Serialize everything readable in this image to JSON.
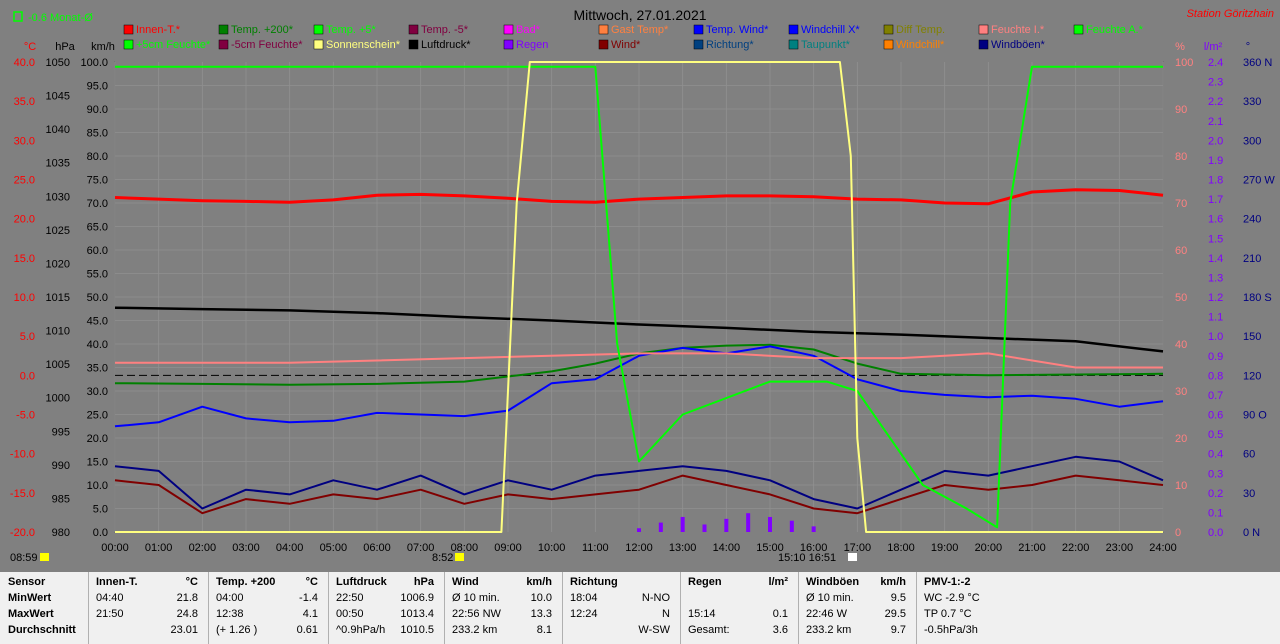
{
  "header": {
    "title": "Mittwoch, 27.01.2021",
    "station": "Station Göritzhain",
    "month_avg": "-0.6 Monat-Ø",
    "time_left": "08:59",
    "sunrise_marker": "8:52",
    "sunset_marker": "15:10  16:51"
  },
  "legend": [
    {
      "label": "Innen-T.*",
      "color": "#ff0000"
    },
    {
      "label": "Temp. +200*",
      "color": "#008000"
    },
    {
      "label": "Temp. +5*",
      "color": "#00ff00"
    },
    {
      "label": "Temp. -5*",
      "color": "#800040"
    },
    {
      "label": "Bad*",
      "color": "#ff00ff"
    },
    {
      "label": "Gast Temp*",
      "color": "#ff8040"
    },
    {
      "label": "Temp. Wind*",
      "color": "#0000ff"
    },
    {
      "label": "Windchill X*",
      "color": "#0000ff"
    },
    {
      "label": "Diff Temp.",
      "color": "#808000"
    },
    {
      "label": "Feuchte I.*",
      "color": "#ff8080"
    },
    {
      "label": "Feuchte A.*",
      "color": "#00ff00"
    },
    {
      "label": "+5cm Feuchte*",
      "color": "#00ff00"
    },
    {
      "label": "-5cm Feuchte*",
      "color": "#800040"
    },
    {
      "label": "Sonnenschein*",
      "color": "#ffff80"
    },
    {
      "label": "Luftdruck*",
      "color": "#000000"
    },
    {
      "label": "Regen",
      "color": "#8000ff"
    },
    {
      "label": "Wind*",
      "color": "#800000"
    },
    {
      "label": "Richtung*",
      "color": "#004080"
    },
    {
      "label": "Taupunkt*",
      "color": "#008080"
    },
    {
      "label": "Windchill*",
      "color": "#ff8000"
    },
    {
      "label": "Windböen*",
      "color": "#000080"
    }
  ],
  "chart_data": {
    "type": "line",
    "x_ticks": [
      "00:00",
      "01:00",
      "02:00",
      "03:00",
      "04:00",
      "05:00",
      "06:00",
      "07:00",
      "08:00",
      "09:00",
      "10:00",
      "11:00",
      "12:00",
      "13:00",
      "14:00",
      "15:00",
      "16:00",
      "17:00",
      "18:00",
      "19:00",
      "20:00",
      "21:00",
      "22:00",
      "23:00",
      "24:00"
    ],
    "axes": {
      "temp": {
        "label": "°C",
        "ticks": [
          "40.0",
          "35.0",
          "30.0",
          "25.0",
          "20.0",
          "15.0",
          "10.0",
          "5.0",
          "0.0",
          "-5.0",
          "-10.0",
          "-15.0",
          "-20.0"
        ],
        "range": [
          -20,
          40
        ]
      },
      "pressure": {
        "label": "hPa",
        "ticks": [
          "1050",
          "1045",
          "1040",
          "1035",
          "1030",
          "1025",
          "1020",
          "1015",
          "1010",
          "1005",
          "1000",
          "995",
          "990",
          "985",
          "980"
        ],
        "range": [
          980,
          1050
        ]
      },
      "wind": {
        "label": "km/h",
        "ticks": [
          "100.0",
          "95.0",
          "90.0",
          "85.0",
          "80.0",
          "75.0",
          "70.0",
          "65.0",
          "60.0",
          "55.0",
          "50.0",
          "45.0",
          "40.0",
          "35.0",
          "30.0",
          "25.0",
          "20.0",
          "15.0",
          "10.0",
          "5.0",
          "0.0"
        ],
        "range": [
          0,
          100
        ]
      },
      "humidity": {
        "label": "%",
        "ticks": [
          "100",
          "90",
          "80",
          "70",
          "60",
          "50",
          "40",
          "30",
          "20",
          "10",
          "0"
        ],
        "range": [
          0,
          100
        ]
      },
      "rain": {
        "label": "l/m²",
        "ticks": [
          "2.4",
          "2.3",
          "2.2",
          "2.1",
          "2.0",
          "1.9",
          "1.8",
          "1.7",
          "1.6",
          "1.5",
          "1.4",
          "1.3",
          "1.2",
          "1.1",
          "1.0",
          "0.9",
          "0.8",
          "0.7",
          "0.6",
          "0.5",
          "0.4",
          "0.3",
          "0.2",
          "0.1",
          "0.0"
        ],
        "range": [
          0,
          2.5
        ]
      },
      "direction": {
        "label": "°",
        "ticks": [
          "360 N",
          "330",
          "300",
          "270 W",
          "240",
          "210",
          "180 S",
          "150",
          "120",
          "90 O",
          "60",
          "30",
          "0 N"
        ],
        "range": [
          0,
          360
        ]
      }
    },
    "series": [
      {
        "name": "Innen-T.*",
        "unit": "°C",
        "color": "#ff0000",
        "x": [
          0,
          1,
          2,
          3,
          4,
          5,
          6,
          7,
          8,
          9,
          10,
          11,
          12,
          13,
          14,
          15,
          16,
          17,
          18,
          19,
          20,
          21,
          22,
          23,
          24
        ],
        "values": [
          22.7,
          22.5,
          22.3,
          22.2,
          22.1,
          22.4,
          23.0,
          23.1,
          22.9,
          22.6,
          22.2,
          22.1,
          22.5,
          22.7,
          22.9,
          22.9,
          22.8,
          22.5,
          22.4,
          22.0,
          21.9,
          23.4,
          23.7,
          23.6,
          23.0
        ]
      },
      {
        "name": "Temp. +200*",
        "unit": "°C",
        "color": "#008000",
        "x": [
          0,
          2,
          4,
          6,
          8,
          10,
          11,
          12,
          13,
          14,
          15,
          16,
          17,
          18,
          20,
          22,
          24
        ],
        "values": [
          -1.0,
          -1.1,
          -1.2,
          -1.1,
          -0.8,
          0.5,
          1.5,
          2.8,
          3.5,
          3.8,
          3.9,
          3.3,
          1.5,
          0.2,
          0.0,
          0.1,
          0.2
        ]
      },
      {
        "name": "Temp. Wind*",
        "unit": "°C",
        "color": "#0000ff",
        "x": [
          0,
          1,
          2,
          3,
          4,
          5,
          6,
          7,
          8,
          9,
          10,
          11,
          12,
          13,
          14,
          15,
          16,
          17,
          18,
          19,
          20,
          21,
          22,
          23,
          24
        ],
        "values": [
          -6.5,
          -6.0,
          -4.0,
          -5.5,
          -6.0,
          -5.8,
          -4.8,
          -5.0,
          -5.2,
          -4.5,
          -1.0,
          -0.5,
          2.5,
          3.5,
          2.8,
          3.7,
          2.5,
          -0.5,
          -2.0,
          -2.5,
          -2.8,
          -2.6,
          -3.0,
          -4.0,
          -3.3
        ]
      },
      {
        "name": "Luftdruck*",
        "unit": "hPa",
        "color": "#000000",
        "x": [
          0,
          2,
          4,
          6,
          8,
          10,
          12,
          14,
          16,
          18,
          20,
          22,
          24
        ],
        "values": [
          1013.4,
          1013.2,
          1013.0,
          1012.6,
          1012.0,
          1011.5,
          1010.9,
          1010.4,
          1009.8,
          1009.4,
          1008.9,
          1008.4,
          1006.9
        ]
      },
      {
        "name": "Wind*",
        "unit": "km/h",
        "color": "#800000",
        "x": [
          0,
          1,
          2,
          3,
          4,
          5,
          6,
          7,
          8,
          9,
          10,
          11,
          12,
          13,
          14,
          15,
          16,
          17,
          18,
          19,
          20,
          21,
          22,
          23,
          24
        ],
        "values": [
          11,
          10,
          4,
          7,
          6,
          8,
          7,
          9,
          6,
          8,
          7,
          8,
          9,
          12,
          10,
          8,
          5,
          4,
          7,
          10,
          9,
          10,
          12,
          11,
          10
        ]
      },
      {
        "name": "Windböen*",
        "unit": "km/h",
        "color": "#000080",
        "x": [
          0,
          1,
          2,
          3,
          4,
          5,
          6,
          7,
          8,
          9,
          10,
          11,
          12,
          13,
          14,
          15,
          16,
          17,
          18,
          19,
          20,
          21,
          22,
          23,
          24
        ],
        "values": [
          14,
          13,
          5,
          9,
          8,
          11,
          9,
          12,
          8,
          11,
          9,
          12,
          13,
          14,
          13,
          11,
          7,
          5,
          9,
          13,
          12,
          14,
          16,
          15,
          11
        ]
      },
      {
        "name": "Feuchte I.*",
        "unit": "%",
        "color": "#ff8080",
        "x": [
          0,
          4,
          8,
          12,
          14,
          16,
          18,
          20,
          22,
          24
        ],
        "values": [
          36,
          36,
          37,
          38,
          38,
          37,
          37,
          38,
          35,
          35
        ]
      },
      {
        "name": "Feuchte A.*",
        "unit": "%",
        "color": "#00ff00",
        "x": [
          0,
          10,
          11.0,
          11.5,
          12.0,
          13,
          15,
          16.3,
          17,
          18.5,
          19.5,
          20.2,
          20.5,
          21,
          22,
          24
        ],
        "values": [
          99,
          99,
          99,
          40,
          15,
          25,
          32,
          32,
          30,
          10,
          5,
          1,
          70,
          99,
          99,
          99
        ]
      },
      {
        "name": "Sonnenschein*",
        "unit": "%",
        "color": "#ffff80",
        "x": [
          0,
          8.85,
          8.95,
          9.2,
          9.5,
          16.6,
          16.85,
          17.0,
          17.2,
          24
        ],
        "values": [
          0,
          0,
          20,
          70,
          100,
          100,
          80,
          20,
          0,
          0
        ]
      },
      {
        "name": "Regen",
        "unit": "l/m²",
        "color": "#8000ff",
        "x": [
          12,
          12.5,
          13,
          13.5,
          14,
          14.5,
          15,
          15.5,
          16
        ],
        "values": [
          0.02,
          0.05,
          0.08,
          0.04,
          0.07,
          0.1,
          0.08,
          0.06,
          0.03
        ]
      }
    ]
  },
  "summary": [
    {
      "header": [
        "Sensor",
        ""
      ],
      "rows": [
        [
          "MinWert",
          ""
        ],
        [
          "MaxWert",
          ""
        ],
        [
          "Durchschnitt",
          ""
        ]
      ]
    },
    {
      "header": [
        "Innen-T.",
        "°C"
      ],
      "rows": [
        [
          "04:40",
          "21.8"
        ],
        [
          "21:50",
          "24.8"
        ],
        [
          "",
          "23.01"
        ]
      ]
    },
    {
      "header": [
        "Temp. +200",
        "°C"
      ],
      "rows": [
        [
          "04:00",
          "-1.4"
        ],
        [
          "12:38",
          "4.1"
        ],
        [
          "(+ 1.26 )",
          "0.61"
        ]
      ]
    },
    {
      "header": [
        "Luftdruck",
        "hPa"
      ],
      "rows": [
        [
          "22:50",
          "1006.9"
        ],
        [
          "00:50",
          "1013.4"
        ],
        [
          "^0.9hPa/h",
          "1010.5"
        ]
      ]
    },
    {
      "header": [
        "Wind",
        "km/h"
      ],
      "rows": [
        [
          "Ø 10 min.",
          "10.0"
        ],
        [
          "22:56  NW",
          "13.3"
        ],
        [
          "233.2 km",
          "8.1"
        ]
      ]
    },
    {
      "header": [
        "Richtung",
        ""
      ],
      "rows": [
        [
          "18:04",
          "N-NO"
        ],
        [
          "12:24",
          "N"
        ],
        [
          "",
          "W-SW"
        ]
      ]
    },
    {
      "header": [
        "Regen",
        "l/m²"
      ],
      "rows": [
        [
          "",
          ""
        ],
        [
          "15:14",
          "0.1"
        ],
        [
          "Gesamt:",
          "3.6"
        ]
      ]
    },
    {
      "header": [
        "Windböen",
        "km/h"
      ],
      "rows": [
        [
          "Ø 10 min.",
          "9.5"
        ],
        [
          "22:46  W",
          "29.5"
        ],
        [
          "233.2 km",
          "9.7"
        ]
      ]
    },
    {
      "header": [
        "PMV-1:-2",
        ""
      ],
      "rows": [
        [
          "WC -2.9 °C",
          ""
        ],
        [
          "TP 0.7 °C",
          ""
        ],
        [
          "-0.5hPa/3h",
          ""
        ]
      ]
    }
  ]
}
